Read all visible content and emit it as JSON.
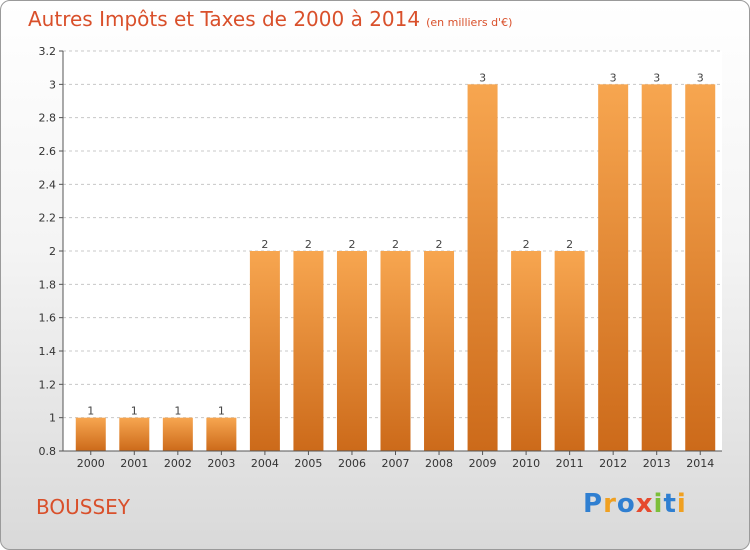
{
  "chart_data": {
    "type": "bar",
    "title": "Autres Impôts et Taxes de 2000 à 2014",
    "subtitle": "(en milliers d'€)",
    "categories": [
      "2000",
      "2001",
      "2002",
      "2003",
      "2004",
      "2005",
      "2006",
      "2007",
      "2008",
      "2009",
      "2010",
      "2011",
      "2012",
      "2013",
      "2014"
    ],
    "values": [
      1,
      1,
      1,
      1,
      2,
      2,
      2,
      2,
      2,
      3,
      2,
      2,
      3,
      3,
      3
    ],
    "data_labels": [
      "1",
      "1",
      "1",
      "1",
      "2",
      "2",
      "2",
      "2",
      "2",
      "3",
      "2",
      "2",
      "3",
      "3",
      "3"
    ],
    "ylim": [
      0.8,
      3.2
    ],
    "yticks": [
      0.8,
      1,
      1.2,
      1.4,
      1.6,
      1.8,
      2,
      2.2,
      2.4,
      2.6,
      2.8,
      3,
      3.2
    ],
    "ytick_labels": [
      "0.8",
      "1",
      "1.2",
      "1.4",
      "1.6",
      "1.8",
      "2",
      "2.2",
      "2.4",
      "2.6",
      "2.8",
      "3",
      "3.2"
    ],
    "xlabel": "",
    "ylabel": "",
    "grid": "horizontal",
    "bar_color_top": "#f7a650",
    "bar_color_bottom": "#cc6a1a",
    "grid_color": "#c8c8c8"
  },
  "commune": "BOUSSEY",
  "logo": {
    "letters": [
      "P",
      "r",
      "o",
      "x",
      "i",
      "t",
      "i"
    ],
    "colors": [
      "#2f7fd1",
      "#f0a020",
      "#2f7fd1",
      "#e64a2e",
      "#7cbf3a",
      "#2f7fd1",
      "#f0a020"
    ]
  }
}
